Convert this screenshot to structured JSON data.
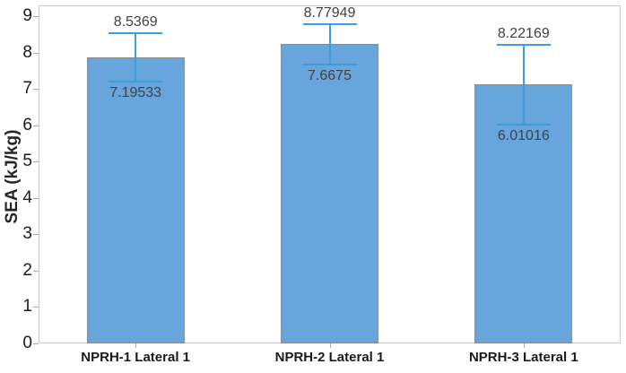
{
  "colors": {
    "background": "#ffffff",
    "bar_fill": "#68a5dc",
    "bar_border": "#8c8c8c",
    "error_bar": "#3e9edb",
    "plot_border": "#cbcbcb",
    "tick_mark": "#a6a6a6",
    "tick_label": "#1a1a1a",
    "value_label": "#404040",
    "axis_title": "#262626"
  },
  "chart_data": {
    "type": "bar",
    "title": "",
    "xlabel": "",
    "ylabel": "SEA (kJ/kg)",
    "ylim": [
      0,
      9
    ],
    "ytick_step": 1,
    "grid": false,
    "legend_position": "none",
    "categories": [
      "NPRH-1 Lateral 1",
      "NPRH-2 Lateral 1",
      "NPRH-3 Lateral 1"
    ],
    "values": [
      7.8656,
      8.2235,
      7.1159
    ],
    "error_upper": [
      8.5369,
      8.77949,
      8.22169
    ],
    "error_lower": [
      7.19533,
      7.6675,
      6.01016
    ],
    "error_upper_labels": [
      "8.5369",
      "8.77949",
      "8.22169"
    ],
    "error_lower_labels": [
      "7.19533",
      "7.6675",
      "6.01016"
    ]
  }
}
